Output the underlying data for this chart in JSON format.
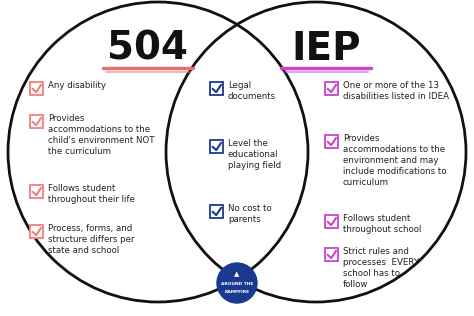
{
  "background_color": "#ffffff",
  "title_504": "504",
  "title_iep": "IEP",
  "title_fontsize": 28,
  "underline_504_color": "#e87070",
  "underline_iep_color": "#cc44cc",
  "circle_color": "#111111",
  "left_items": [
    {
      "text": "Any disability",
      "checkbox_color": "#f08080",
      "lines": 1
    },
    {
      "text": "Provides\naccommodations to the\nchild's environment NOT\nthe curriculum",
      "checkbox_color": "#f08080",
      "lines": 4
    },
    {
      "text": "Follows student\nthroughout their life",
      "checkbox_color": "#f08080",
      "lines": 2
    },
    {
      "text": "Process, forms, and\nstructure differs per\nstate and school",
      "checkbox_color": "#f08080",
      "lines": 3
    }
  ],
  "center_items": [
    {
      "text": "Legal\ndocuments",
      "checkbox_color": "#1a3a8f",
      "lines": 2
    },
    {
      "text": "Level the\neducational\nplaying field",
      "checkbox_color": "#1a3a8f",
      "lines": 3
    },
    {
      "text": "No cost to\nparents",
      "checkbox_color": "#1a3a8f",
      "lines": 2
    }
  ],
  "right_items": [
    {
      "text": "One or more of the 13\ndisabilities listed in IDEA",
      "checkbox_color": "#cc44cc",
      "lines": 2
    },
    {
      "text": "Provides\naccommodations to the\nenvironment and may\ninclude modifications to\ncurriculum",
      "checkbox_color": "#cc44cc",
      "lines": 5
    },
    {
      "text": "Follows student\nthroughout school",
      "checkbox_color": "#cc44cc",
      "lines": 2
    },
    {
      "text": "Strict rules and\nprocesses  EVERY\nschool has to\nfollow",
      "checkbox_color": "#cc44cc",
      "lines": 4
    }
  ],
  "badge_color": "#1a3a8f",
  "badge_line1": "AROUND THE",
  "badge_line2": "KAMPFIRE"
}
